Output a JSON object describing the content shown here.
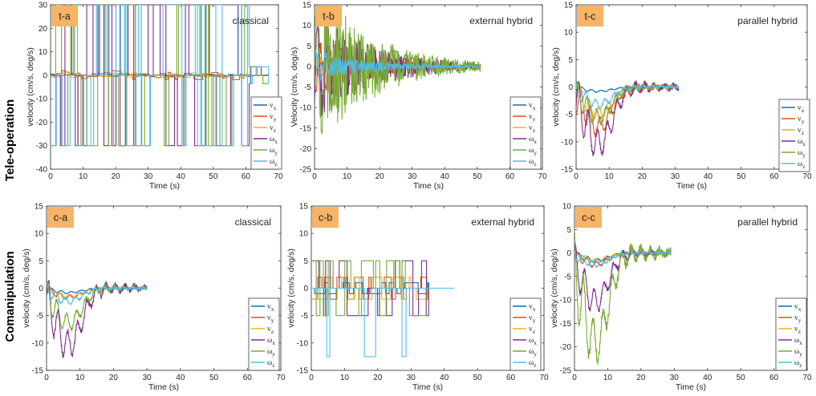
{
  "row_labels": [
    "Tele-operation",
    "Comanipulation"
  ],
  "legend_entries": [
    {
      "sym": "v",
      "sub": "x"
    },
    {
      "sym": "v",
      "sub": "y"
    },
    {
      "sym": "v",
      "sub": "z"
    },
    {
      "sym": "ω",
      "sub": "x"
    },
    {
      "sym": "ω",
      "sub": "y"
    },
    {
      "sym": "ω",
      "sub": "z"
    }
  ],
  "series_colors": [
    "#0072BD",
    "#D95319",
    "#EDB120",
    "#7E2F8E",
    "#77AC30",
    "#4DBEEE"
  ],
  "tag_color": "#F5B466",
  "chart_data": [
    {
      "id": "t-a",
      "tag": "t-a",
      "type": "line",
      "title": "classical",
      "xlabel": "Time (s)",
      "ylabel": "velocity (cm/s, deg/s)",
      "xlim": [
        0,
        70
      ],
      "ylim": [
        -40,
        30
      ],
      "xticks": [
        0,
        10,
        20,
        30,
        40,
        50,
        60,
        70
      ],
      "yticks": [
        -40,
        -30,
        -20,
        -10,
        0,
        10,
        20,
        30
      ],
      "end_time": 67,
      "pattern": "bang",
      "series": [
        {
          "name": "vx",
          "amp": 0.6
        },
        {
          "name": "vy",
          "amp": 2
        },
        {
          "name": "vz",
          "amp": 1
        },
        {
          "name": "ωx",
          "amp": 30
        },
        {
          "name": "ωy",
          "amp": 30
        },
        {
          "name": "ωz",
          "amp": 30
        }
      ]
    },
    {
      "id": "t-b",
      "tag": "t-b",
      "type": "line",
      "title": "external hybrid",
      "xlabel": "Time (s)",
      "ylabel": "Velocity (cm/s, deg/s)",
      "xlim": [
        0,
        70
      ],
      "ylim": [
        -25,
        15
      ],
      "xticks": [
        0,
        10,
        20,
        30,
        40,
        50,
        60,
        70
      ],
      "yticks": [
        -25,
        -20,
        -15,
        -10,
        -5,
        0,
        5,
        10,
        15
      ],
      "end_time": 51,
      "pattern": "decay",
      "series": [
        {
          "name": "vx",
          "amp": 1
        },
        {
          "name": "vy",
          "amp": 8
        },
        {
          "name": "vz",
          "amp": 4
        },
        {
          "name": "ωx",
          "amp": 15
        },
        {
          "name": "ωy",
          "amp": 22
        },
        {
          "name": "ωz",
          "amp": 4
        }
      ]
    },
    {
      "id": "t-c",
      "tag": "t-c",
      "type": "line",
      "title": "parallel hybrid",
      "xlabel": "Time (s)",
      "ylabel": "velocity (cm/s, deg/s)",
      "xlim": [
        0,
        70
      ],
      "ylim": [
        -15,
        15
      ],
      "xticks": [
        0,
        10,
        20,
        30,
        40,
        50,
        60,
        70
      ],
      "yticks": [
        -15,
        -10,
        -5,
        0,
        5,
        10,
        15
      ],
      "end_time": 31,
      "pattern": "smooth",
      "series": [
        {
          "name": "vx",
          "amp": 1
        },
        {
          "name": "vy",
          "amp": 9
        },
        {
          "name": "vz",
          "amp": 6
        },
        {
          "name": "ωx",
          "amp": 13
        },
        {
          "name": "ωy",
          "amp": 7
        },
        {
          "name": "ωz",
          "amp": 4
        }
      ]
    },
    {
      "id": "c-a",
      "tag": "c-a",
      "type": "line",
      "title": "classical",
      "xlabel": "Time (s)",
      "ylabel": "velocity (cm/s, deg/s)",
      "xlim": [
        0,
        70
      ],
      "ylim": [
        -15,
        15
      ],
      "xticks": [
        0,
        10,
        20,
        30,
        40,
        50,
        60,
        70
      ],
      "yticks": [
        -15,
        -10,
        -5,
        0,
        5,
        10,
        15
      ],
      "end_time": 30,
      "pattern": "smooth",
      "series": [
        {
          "name": "vx",
          "amp": 1
        },
        {
          "name": "vy",
          "amp": 2
        },
        {
          "name": "vz",
          "amp": 2
        },
        {
          "name": "ωx",
          "amp": 13
        },
        {
          "name": "ωy",
          "amp": 8
        },
        {
          "name": "ωz",
          "amp": 3
        }
      ]
    },
    {
      "id": "c-b",
      "tag": "c-b",
      "type": "line",
      "title": "external hybrid",
      "xlabel": "Time (s)",
      "ylabel": "velocity (cm/s, deg/s)",
      "xlim": [
        0,
        70
      ],
      "ylim": [
        -15,
        15
      ],
      "xticks": [
        0,
        10,
        20,
        30,
        40,
        50,
        60,
        70
      ],
      "yticks": [
        -15,
        -10,
        -5,
        0,
        5,
        10,
        15
      ],
      "end_time": 43,
      "pattern": "step",
      "series": [
        {
          "name": "vx",
          "amp": 1
        },
        {
          "name": "vy",
          "amp": 2
        },
        {
          "name": "vz",
          "amp": 2
        },
        {
          "name": "ωx",
          "amp": 5
        },
        {
          "name": "ωy",
          "amp": 5
        },
        {
          "name": "ωz",
          "amp": 12.5
        }
      ]
    },
    {
      "id": "c-c",
      "tag": "c-c",
      "type": "line",
      "title": "parallel hybrid",
      "xlabel": "Time (s)",
      "ylabel": "velocity (cm/s, deg/s)",
      "xlim": [
        0,
        70
      ],
      "ylim": [
        -25,
        10
      ],
      "xticks": [
        0,
        10,
        20,
        30,
        40,
        50,
        60,
        70
      ],
      "yticks": [
        -25,
        -20,
        -15,
        -10,
        -5,
        0,
        5,
        10
      ],
      "end_time": 29,
      "pattern": "smooth",
      "series": [
        {
          "name": "vx",
          "amp": 2
        },
        {
          "name": "vy",
          "amp": 3
        },
        {
          "name": "vz",
          "amp": 2
        },
        {
          "name": "ωx",
          "amp": 13
        },
        {
          "name": "ωy",
          "amp": 24
        },
        {
          "name": "ωz",
          "amp": 3
        }
      ]
    }
  ]
}
